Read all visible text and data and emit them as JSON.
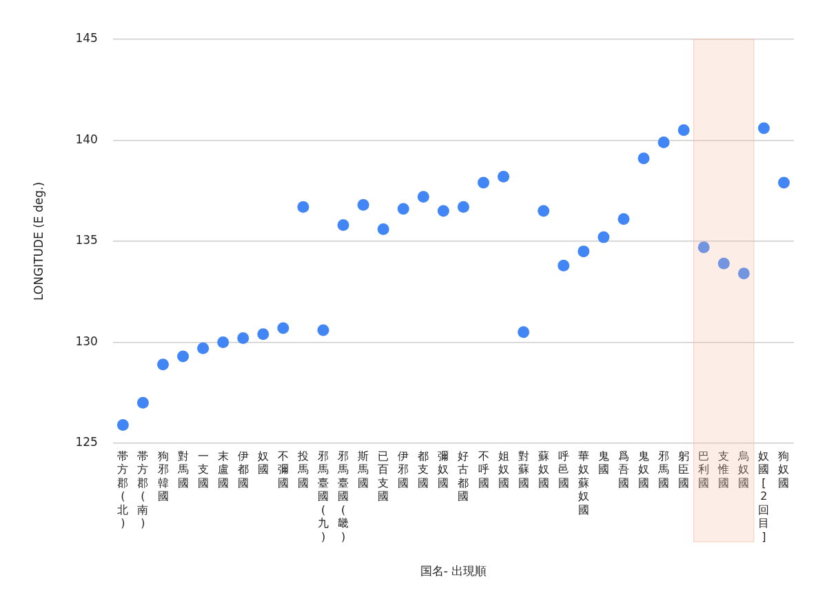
{
  "chart_data": {
    "type": "scatter",
    "xlabel": "国名- 出現順",
    "ylabel": "LONGITUDE (E deg.)",
    "categories": [
      "帯方郡(北)",
      "帯方郡(南)",
      "狗邪韓國",
      "對馬國",
      "一支國",
      "末盧國",
      "伊都國",
      "奴國",
      "不彌國",
      "投馬國",
      "邪馬臺國(九)",
      "邪馬臺國(畿)",
      "斯馬國",
      "已百支國",
      "伊邪國",
      "都支國",
      "彌奴國",
      "好古都國",
      "不呼國",
      "姐奴國",
      "對蘇國",
      "蘇奴國",
      "呼邑國",
      "華奴蘇奴國",
      "鬼國",
      "爲吾國",
      "鬼奴國",
      "邪馬國",
      "躬臣國",
      "巴利國",
      "支惟國",
      "烏奴國",
      "奴國[2回目]",
      "狗奴國"
    ],
    "series": [
      {
        "color": "#4285f4",
        "values": [
          125.9,
          127.0,
          128.9,
          129.3,
          129.7,
          130.0,
          130.2,
          130.4,
          130.7,
          136.7,
          130.6,
          135.8,
          136.8,
          135.6,
          136.6,
          137.2,
          136.5,
          136.7,
          137.9,
          138.2,
          130.5,
          136.5,
          133.8,
          134.5,
          135.2,
          136.1,
          139.1,
          139.9,
          140.5,
          134.7,
          133.9,
          133.4,
          140.6,
          137.9
        ]
      }
    ],
    "ylim": [
      125,
      145
    ],
    "yticks": [
      125,
      130,
      135,
      140,
      145
    ],
    "grid": "y",
    "legend": false,
    "marker": "circle",
    "bands": [
      {
        "axis": "x",
        "from": "巴利國",
        "to": "烏奴國",
        "color": "#f4c0a8"
      }
    ]
  }
}
